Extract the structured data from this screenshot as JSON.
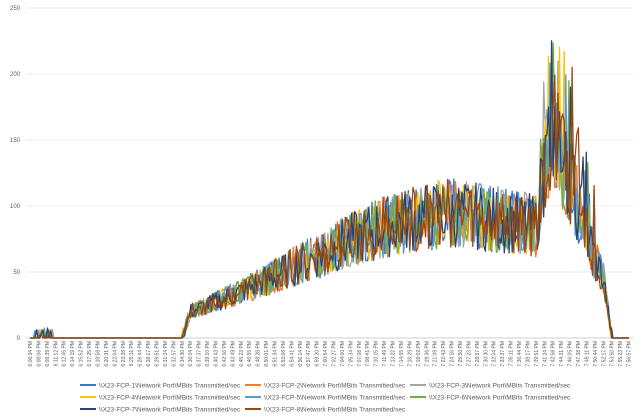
{
  "chart_data": {
    "type": "line",
    "title": "",
    "xlabel": "",
    "ylabel": "",
    "ylim": [
      0,
      250
    ],
    "y_ticks": [
      0,
      50,
      100,
      150,
      200,
      250
    ],
    "grid": true,
    "legend_position": "bottom",
    "x_tick_labels": [
      "6:06:34 PM",
      "6:08:06 PM",
      "6:09:39 PM",
      "6:11:12 PM",
      "6:12:45 PM",
      "6:14:19 PM",
      "6:15:52 PM",
      "6:17:25 PM",
      "6:18:58 PM",
      "6:20:31 PM",
      "6:22:04 PM",
      "6:23:38 PM",
      "6:25:11 PM",
      "6:26:44 PM",
      "6:28:17 PM",
      "6:29:51 PM",
      "6:31:24 PM",
      "6:32:57 PM",
      "6:34:30 PM",
      "6:36:04 PM",
      "6:37:37 PM",
      "6:39:10 PM",
      "6:40:43 PM",
      "6:42:16 PM",
      "6:43:49 PM",
      "6:45:23 PM",
      "6:46:55 PM",
      "6:48:28 PM",
      "6:50:01 PM",
      "6:51:34 PM",
      "6:53:08 PM",
      "6:54:41 PM",
      "6:56:14 PM",
      "6:57:47 PM",
      "6:59:20 PM",
      "7:00:54 PM",
      "7:02:27 PM",
      "7:04:00 PM",
      "7:05:34 PM",
      "7:07:08 PM",
      "7:08:41 PM",
      "7:10:15 PM",
      "7:11:49 PM",
      "7:13:22 PM",
      "7:14:55 PM",
      "7:16:29 PM",
      "7:18:02 PM",
      "7:19:36 PM",
      "7:21:09 PM",
      "7:22:43 PM",
      "7:24:16 PM",
      "7:25:50 PM",
      "7:27:23 PM",
      "7:28:57 PM",
      "7:30:30 PM",
      "7:32:04 PM",
      "7:33:37 PM",
      "7:35:11 PM",
      "7:36:44 PM",
      "7:38:17 PM",
      "7:39:51 PM",
      "7:41:24 PM",
      "7:42:58 PM",
      "7:44:31 PM",
      "7:46:05 PM",
      "7:47:38 PM",
      "7:49:11 PM",
      "7:50:44 PM",
      "7:52:17 PM",
      "7:53:50 PM",
      "7:55:23 PM",
      "7:56:57 PM"
    ],
    "series": [
      {
        "name": "\\\\X23-FCP-1\\Network Port\\MBits Transmitted/sec",
        "color": "#4472c4"
      },
      {
        "name": "\\\\X23-FCP-2\\Network Port\\MBits Transmitted/sec",
        "color": "#ed7d31"
      },
      {
        "name": "\\\\X23-FCP-3\\Network Port\\MBits Transmitted/sec",
        "color": "#a5a5a5"
      },
      {
        "name": "\\\\X23-FCP-4\\Network Port\\MBits Transmitted/sec",
        "color": "#ffc000"
      },
      {
        "name": "\\\\X23-FCP-5\\Network Port\\MBits Transmitted/sec",
        "color": "#5b9bd5"
      },
      {
        "name": "\\\\X23-FCP-6\\Network Port\\MBits Transmitted/sec",
        "color": "#70ad47"
      },
      {
        "name": "\\\\X23-FCP-7\\Network Port\\MBits Transmitted/sec",
        "color": "#264478"
      },
      {
        "name": "\\\\X23-FCP-8\\Network Port\\MBits Transmitted/sec",
        "color": "#9e480e"
      }
    ],
    "trend": {
      "x_index": [
        0,
        2,
        3,
        17,
        18,
        19,
        25,
        30,
        35,
        40,
        45,
        50,
        55,
        60,
        61,
        62,
        63,
        64,
        65,
        66,
        67,
        68,
        69,
        70,
        71
      ],
      "y": [
        0,
        2,
        0,
        0,
        0,
        20,
        35,
        50,
        65,
        80,
        90,
        95,
        90,
        85,
        130,
        160,
        135,
        120,
        100,
        80,
        60,
        45,
        0,
        0,
        0
      ]
    },
    "peaks": {
      "FCP-4": 217,
      "FCP-8": 205,
      "FCP-6": 195,
      "FCP-7": 190
    }
  }
}
